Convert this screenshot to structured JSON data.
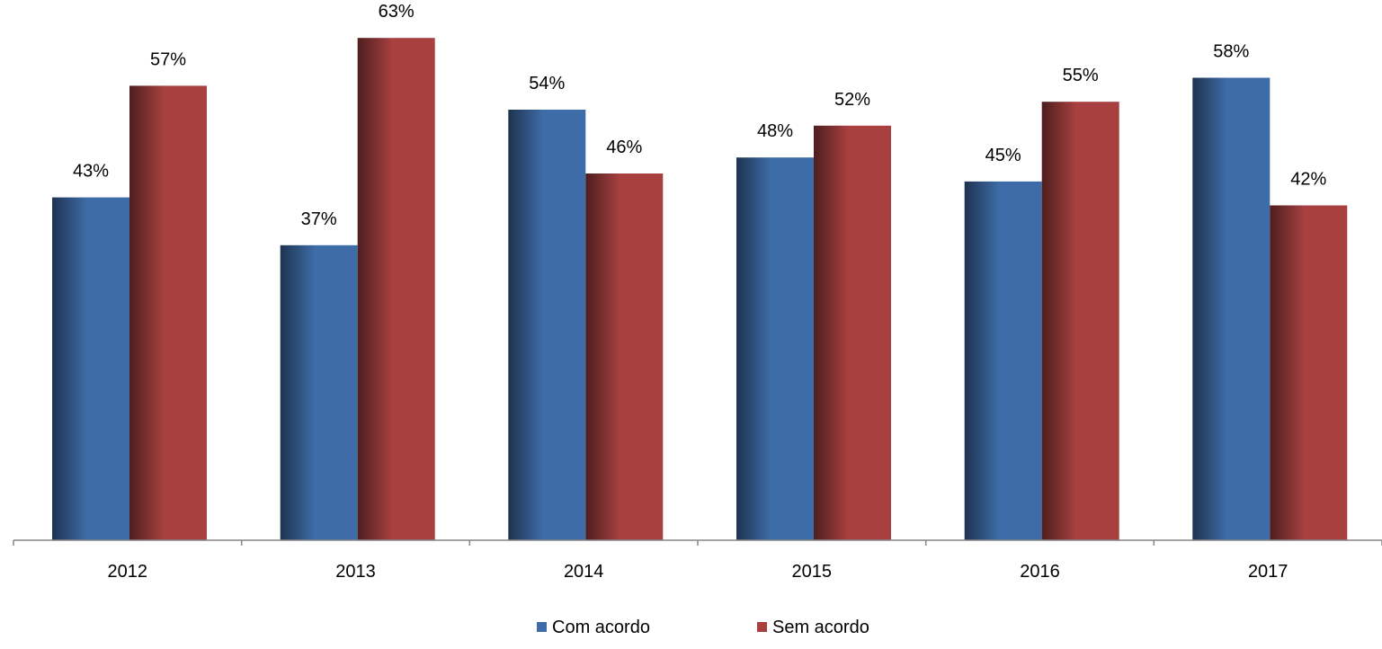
{
  "chart_data": {
    "type": "bar",
    "categories": [
      "2012",
      "2013",
      "2014",
      "2015",
      "2016",
      "2017"
    ],
    "series": [
      {
        "name": "Com acordo",
        "values": [
          43,
          37,
          54,
          48,
          45,
          58
        ],
        "labels": [
          "43%",
          "37%",
          "54%",
          "48%",
          "45%",
          "58%"
        ],
        "color": "#3D6CA8",
        "color_dark": "#1F3350"
      },
      {
        "name": "Sem acordo",
        "values": [
          57,
          63,
          46,
          52,
          55,
          42
        ],
        "labels": [
          "57%",
          "63%",
          "46%",
          "52%",
          "55%",
          "42%"
        ],
        "color": "#A84040",
        "color_dark": "#4E1E1E"
      }
    ],
    "value_unit": "%",
    "ylim": [
      0,
      100
    ],
    "grid": false,
    "y_axis_visible": false,
    "legend_position": "bottom-center",
    "title": "",
    "xlabel": "",
    "ylabel": ""
  }
}
